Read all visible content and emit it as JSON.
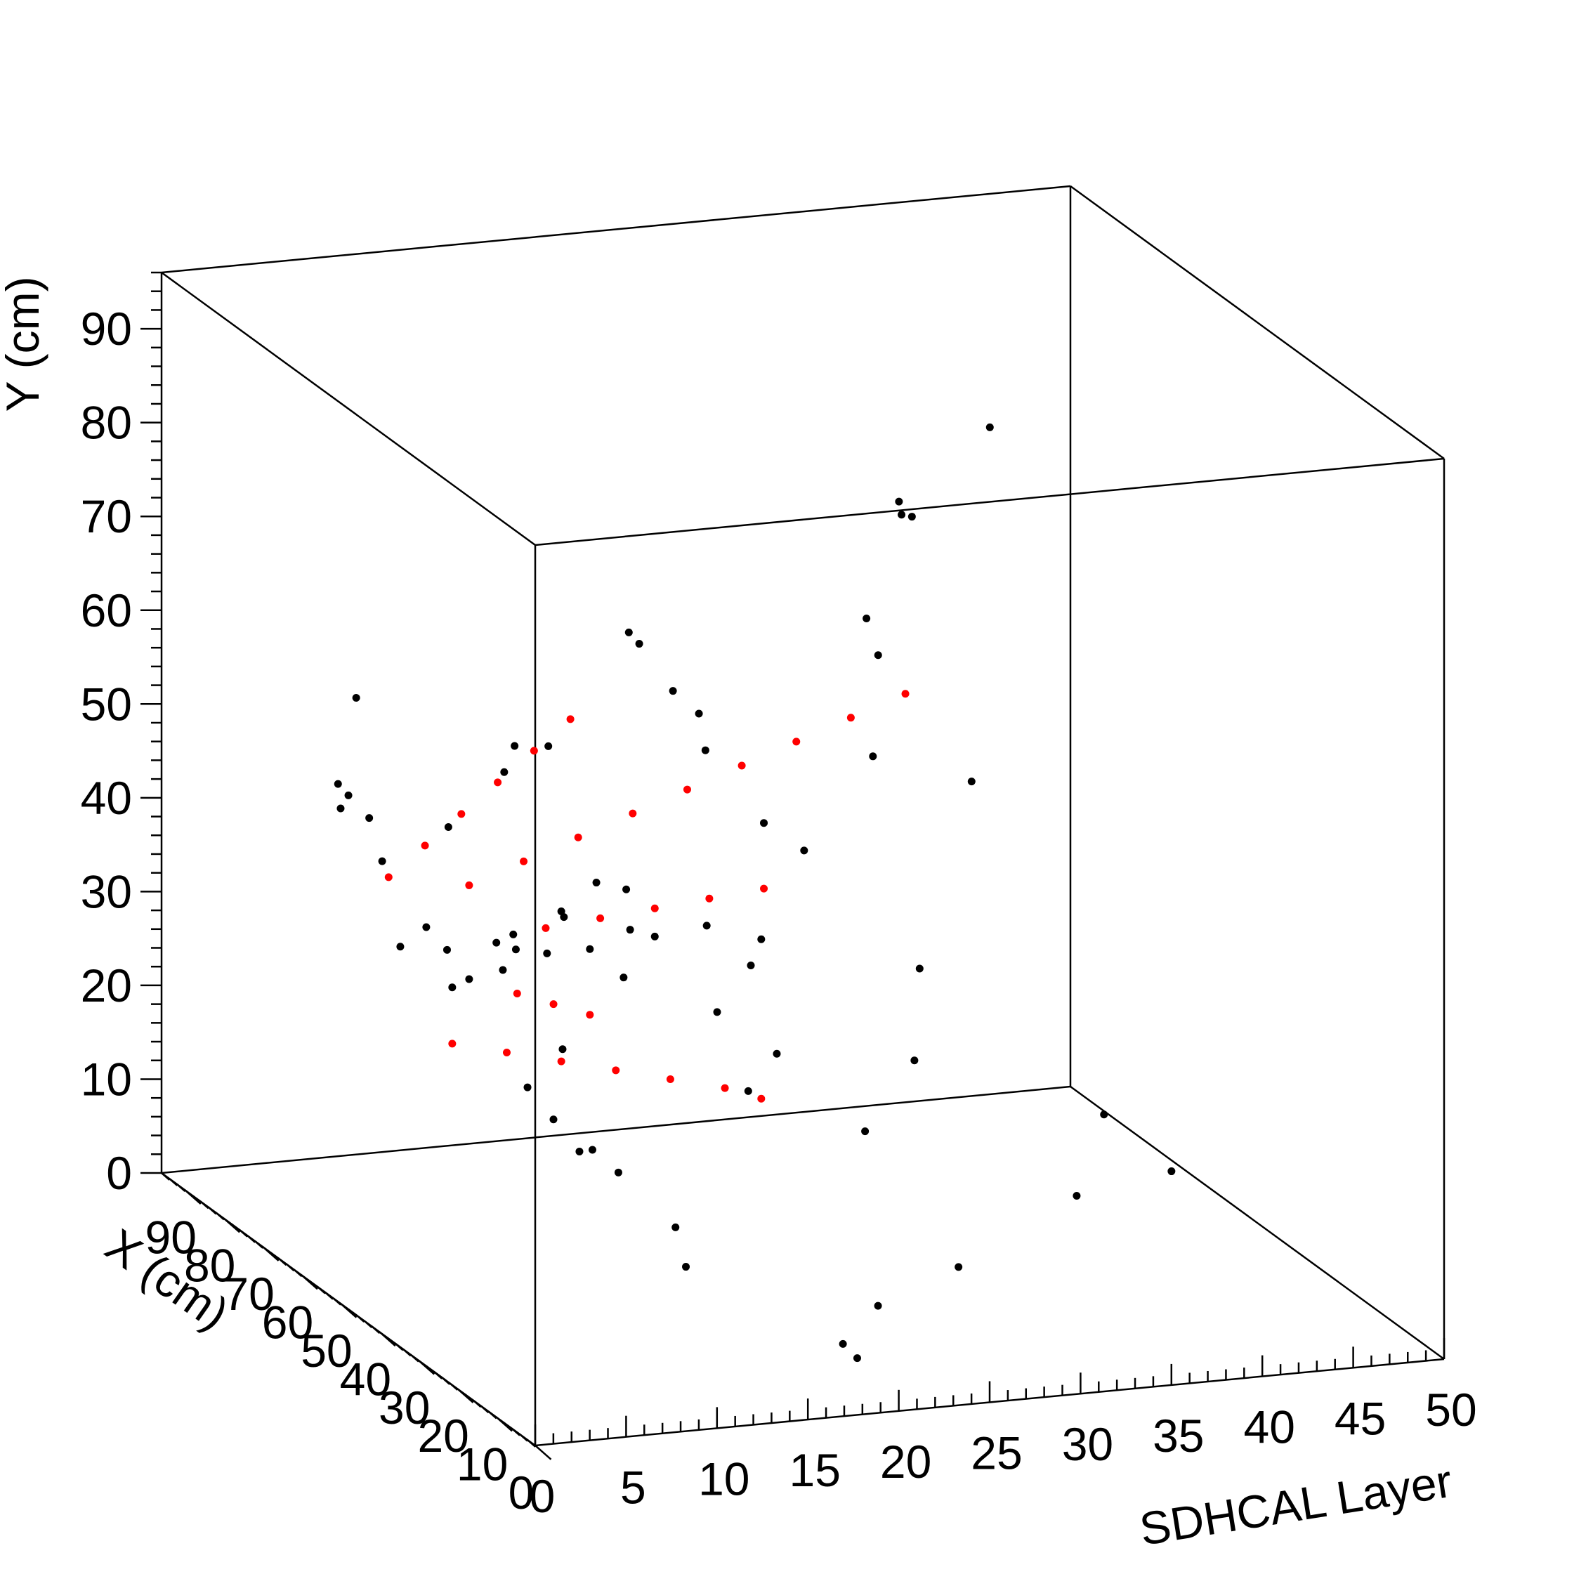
{
  "chart_data": {
    "type": "scatter",
    "title": "",
    "axes": {
      "z": {
        "label": "SDHCAL Layer",
        "range": [
          0,
          50
        ],
        "ticks": [
          0,
          5,
          10,
          15,
          20,
          25,
          30,
          35,
          40,
          45,
          50
        ]
      },
      "y": {
        "label": "Y (cm)",
        "range": [
          0,
          96
        ],
        "ticks": [
          0,
          10,
          20,
          30,
          40,
          50,
          60,
          70,
          80,
          90
        ]
      },
      "x": {
        "label": "X (cm)",
        "range": [
          0,
          96
        ],
        "ticks": [
          0,
          10,
          20,
          30,
          40,
          50,
          60,
          70,
          80,
          90
        ]
      }
    },
    "grid": false,
    "series": [
      {
        "color": "#000000",
        "points": [
          [
            44,
            39.5,
            2
          ],
          [
            42,
            42,
            3
          ],
          [
            40,
            36,
            4
          ],
          [
            46,
            38,
            5
          ],
          [
            38,
            41,
            6
          ],
          [
            45,
            35,
            6
          ],
          [
            41,
            37,
            7
          ],
          [
            43,
            40,
            8
          ],
          [
            39,
            39,
            9
          ],
          [
            47,
            37,
            9
          ],
          [
            40,
            43,
            10
          ],
          [
            44,
            41,
            11
          ],
          [
            42,
            38,
            12
          ],
          [
            38,
            36,
            13
          ],
          [
            45,
            44,
            13
          ],
          [
            41,
            40,
            14
          ],
          [
            60,
            52,
            2
          ],
          [
            62,
            50,
            3
          ],
          [
            64,
            48,
            3
          ],
          [
            58,
            44,
            4
          ],
          [
            66,
            46,
            5
          ],
          [
            55,
            48,
            7
          ],
          [
            50,
            55,
            9
          ],
          [
            52,
            57,
            10
          ],
          [
            48,
            58,
            11
          ],
          [
            30,
            28,
            6
          ],
          [
            28,
            25,
            7
          ],
          [
            26,
            22,
            8
          ],
          [
            35,
            30,
            9
          ],
          [
            32,
            20,
            10
          ],
          [
            30,
            18,
            11
          ],
          [
            20,
            15,
            12
          ],
          [
            22,
            10,
            13
          ],
          [
            46,
            70,
            15
          ],
          [
            48,
            68,
            16
          ],
          [
            44,
            64,
            17
          ],
          [
            42,
            62,
            18
          ],
          [
            60,
            61,
            3
          ],
          [
            45,
            57,
            19
          ],
          [
            44,
            49,
            22
          ],
          [
            43,
            46,
            24
          ],
          [
            40,
            38,
            21
          ],
          [
            38,
            36,
            20
          ],
          [
            42,
            44,
            14
          ],
          [
            55,
            66,
            30
          ],
          [
            52,
            63,
            30
          ],
          [
            42,
            52,
            33
          ],
          [
            44,
            55,
            28
          ],
          [
            32,
            36,
            28
          ],
          [
            22,
            22,
            36
          ],
          [
            15,
            16,
            33
          ],
          [
            24,
            29,
            26
          ],
          [
            18,
            24,
            22
          ],
          [
            10,
            8,
            21
          ],
          [
            8,
            12,
            25
          ],
          [
            5,
            6,
            18
          ],
          [
            6,
            4,
            19
          ],
          [
            44,
            38,
            16
          ],
          [
            40,
            40,
            18
          ],
          [
            60,
            75,
            33
          ],
          [
            62,
            74,
            34
          ],
          [
            14,
            18,
            38
          ],
          [
            70,
            80,
            40
          ],
          [
            70,
            73,
            35
          ],
          [
            42,
            30,
            19
          ],
          [
            34,
            24,
            19
          ],
          [
            36,
            27,
            21
          ]
        ]
      },
      {
        "color": "#ff0000",
        "points": [
          [
            47,
            46,
            2
          ],
          [
            47,
            49,
            4
          ],
          [
            47,
            52,
            6
          ],
          [
            47,
            55,
            8
          ],
          [
            47,
            58,
            10
          ],
          [
            47,
            61,
            12
          ],
          [
            45,
            45,
            6
          ],
          [
            45,
            47,
            9
          ],
          [
            45,
            49,
            12
          ],
          [
            45,
            51,
            15
          ],
          [
            45,
            53,
            18
          ],
          [
            45,
            55,
            21
          ],
          [
            45,
            57,
            24
          ],
          [
            45,
            59,
            27
          ],
          [
            45,
            61,
            30
          ],
          [
            44,
            40,
            10
          ],
          [
            44,
            40.5,
            13
          ],
          [
            44,
            41,
            16
          ],
          [
            44,
            41.5,
            19
          ],
          [
            44,
            42,
            22
          ],
          [
            42,
            34,
            8
          ],
          [
            42,
            32.5,
            10
          ],
          [
            42,
            31,
            12
          ],
          [
            40,
            30,
            4
          ],
          [
            40,
            28.5,
            7
          ],
          [
            40,
            27,
            10
          ],
          [
            40,
            25.5,
            13
          ],
          [
            40,
            24,
            16
          ],
          [
            40,
            22.5,
            19
          ],
          [
            40,
            21,
            21
          ]
        ]
      }
    ]
  }
}
